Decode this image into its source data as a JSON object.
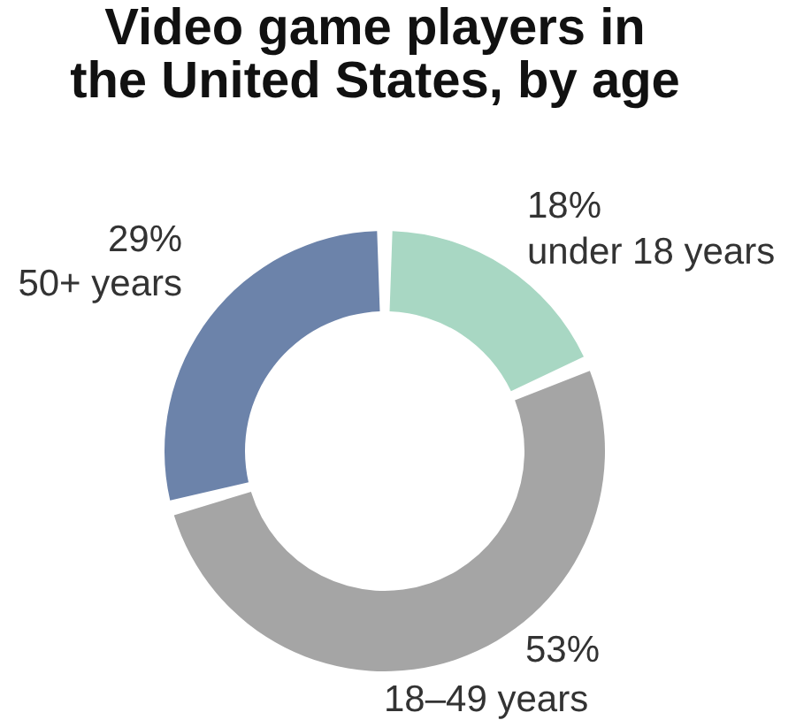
{
  "chart_data": {
    "type": "donut",
    "title": "Video game players in the United States, by age",
    "categories": [
      "under 18 years",
      "18–49 years",
      "50+ years"
    ],
    "values": [
      18,
      53,
      29
    ],
    "colors": [
      "#a8d7c3",
      "#a5a5a5",
      "#6c83aa"
    ],
    "value_labels": [
      "18%",
      "53%",
      "29%"
    ]
  }
}
